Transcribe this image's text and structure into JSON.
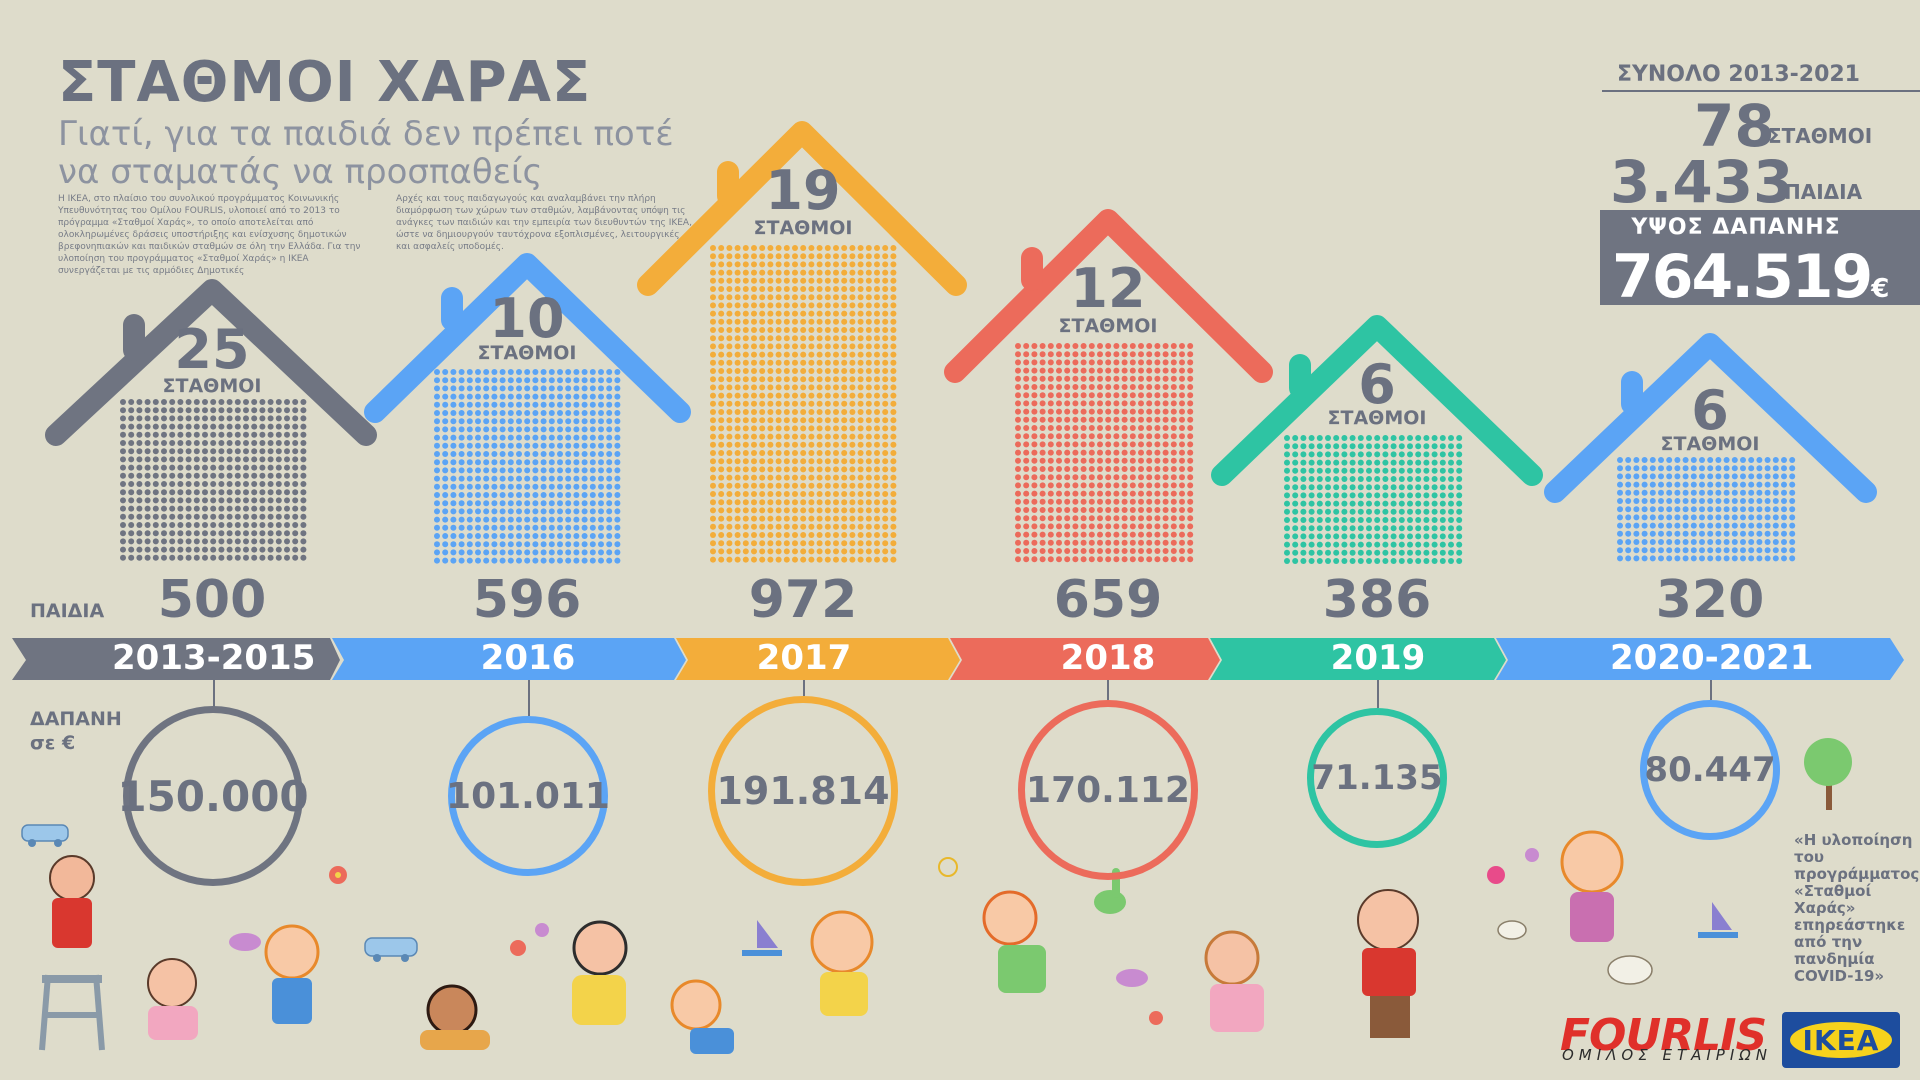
{
  "header": {
    "title": "ΣΤΑΘΜΟΙ ΧΑΡΑΣ",
    "subtitle": "Γιατί, για τα παιδιά δεν πρέπει ποτέ να σταματάς να προσπαθείς",
    "paragraph_left": "Η ΙΚΕΑ, στο πλαίσιο του συνολικού προγράμματος Κοινωνικής Υπευθυνότητας του Ομίλου FOURLIS, υλοποιεί από το 2013 το πρόγραμμα «Σταθμοί Χαράς», το οποίο αποτελείται από ολοκληρωμένες δράσεις υποστήριξης και ενίσχυσης δημοτικών βρεφονηπιακών και παιδικών σταθμών σε όλη την Ελλάδα. Για την υλοποίηση του προγράμματος «Σταθμοί Χαράς» η ΙΚΕΑ συνεργάζεται με τις αρμόδιες Δημοτικές",
    "paragraph_right": "Αρχές και τους παιδαγωγούς και αναλαμβάνει την πλήρη διαμόρφωση των χώρων των σταθμών, λαμβάνοντας υπόψη τις ανάγκες των παιδιών και την εμπειρία των διευθυντών της ΙΚΕΑ, ώστε να δημιουργούν ταυτόχρονα εξοπλισμένες, λειτουργικές και ασφαλείς υποδομές."
  },
  "totals": {
    "heading": "ΣΥΝΟΛΟ 2013-2021",
    "stations_value": "78",
    "stations_label": "ΣΤΑΘΜΟΙ",
    "children_value": "3.433",
    "children_label": "ΠΑΙΔΙΑ",
    "cost_label": "ΥΨΟΣ ΔΑΠΑΝΗΣ",
    "cost_value": "764.519",
    "cost_currency": "€"
  },
  "labels": {
    "children": "ΠΑΙΔΙΑ",
    "cost_line1": "ΔΑΠΑΝΗ",
    "cost_line2": "σε €",
    "station_word": "ΣΤΑΘΜΟΙ"
  },
  "periods": [
    {
      "year": "2013-2015",
      "stations": "25",
      "children": "500",
      "cost": "150.000",
      "color": "#6f7481"
    },
    {
      "year": "2016",
      "stations": "10",
      "children": "596",
      "cost": "101.011",
      "color": "#5ba4f5"
    },
    {
      "year": "2017",
      "stations": "19",
      "children": "972",
      "cost": "191.814",
      "color": "#f3ad3a"
    },
    {
      "year": "2018",
      "stations": "12",
      "children": "659",
      "cost": "170.112",
      "color": "#ec6b5b"
    },
    {
      "year": "2019",
      "stations": "6",
      "children": "386",
      "cost": "71.135",
      "color": "#2ec4a3"
    },
    {
      "year": "2020-2021",
      "stations": "6",
      "children": "320",
      "cost": "80.447",
      "color": "#5ba4f5"
    }
  ],
  "quote": "«Η υλοποίηση του προγράμματος «Σταθμοί Χαράς» επηρεάστηκε από την πανδημία COVID-19»",
  "logos": {
    "fourlis": "FOURLIS",
    "fourlis_sub": "ΟΜΙΛΟΣ ΕΤΑΙΡΙΩΝ",
    "ikea": "IKEA"
  },
  "decorations": [
    "child-drawing-icon",
    "car-icon",
    "flower-icon",
    "cat-icon",
    "sailboat-icon",
    "sun-icon",
    "dinosaur-icon",
    "tree-icon",
    "butterfly-icon",
    "palette-icon"
  ]
}
